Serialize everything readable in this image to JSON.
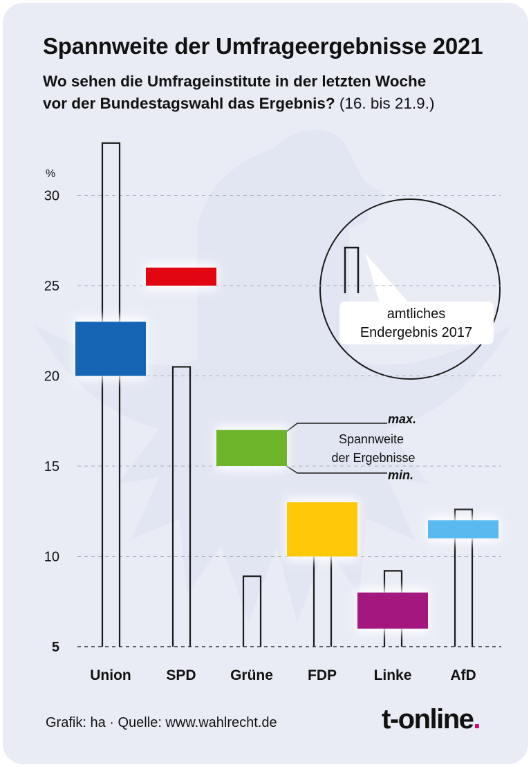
{
  "title": "Spannweite der Umfrageergebnisse 2021",
  "subtitle_bold": "Wo sehen die Umfrageinstitute in der letzten Woche",
  "subtitle_bold2": "vor der Bundestagswahl das Ergebnis?",
  "subtitle_light": " (16. bis 21.9.)",
  "footer": {
    "credit": "Grafik: ha",
    "separator": "·",
    "source": "Quelle: www.wahlrecht.de",
    "logo_text": "t-online",
    "logo_dot": "."
  },
  "legend": {
    "circle_line1": "amtliches",
    "circle_line2": "Endergebnis 2017",
    "max_label": "max.",
    "range_line1": "Spannweite",
    "range_line2": "der Ergebnisse",
    "min_label": "min."
  },
  "chart_data": {
    "type": "bar",
    "ylabel": "%",
    "ylim": [
      5,
      33
    ],
    "yticks": [
      5,
      10,
      15,
      20,
      25,
      30
    ],
    "grid": true,
    "categories": [
      "Union",
      "SPD",
      "Grüne",
      "FDP",
      "Linke",
      "AfD"
    ],
    "result_2017": [
      32.9,
      20.5,
      8.9,
      10.7,
      9.2,
      12.6
    ],
    "poll_min": [
      20,
      25,
      15,
      10,
      6,
      11
    ],
    "poll_max": [
      23,
      26,
      17,
      13,
      8,
      12
    ],
    "colors": [
      "#1565b4",
      "#e20612",
      "#6fb52c",
      "#ffc90a",
      "#a4177e",
      "#5ab9ef"
    ]
  }
}
